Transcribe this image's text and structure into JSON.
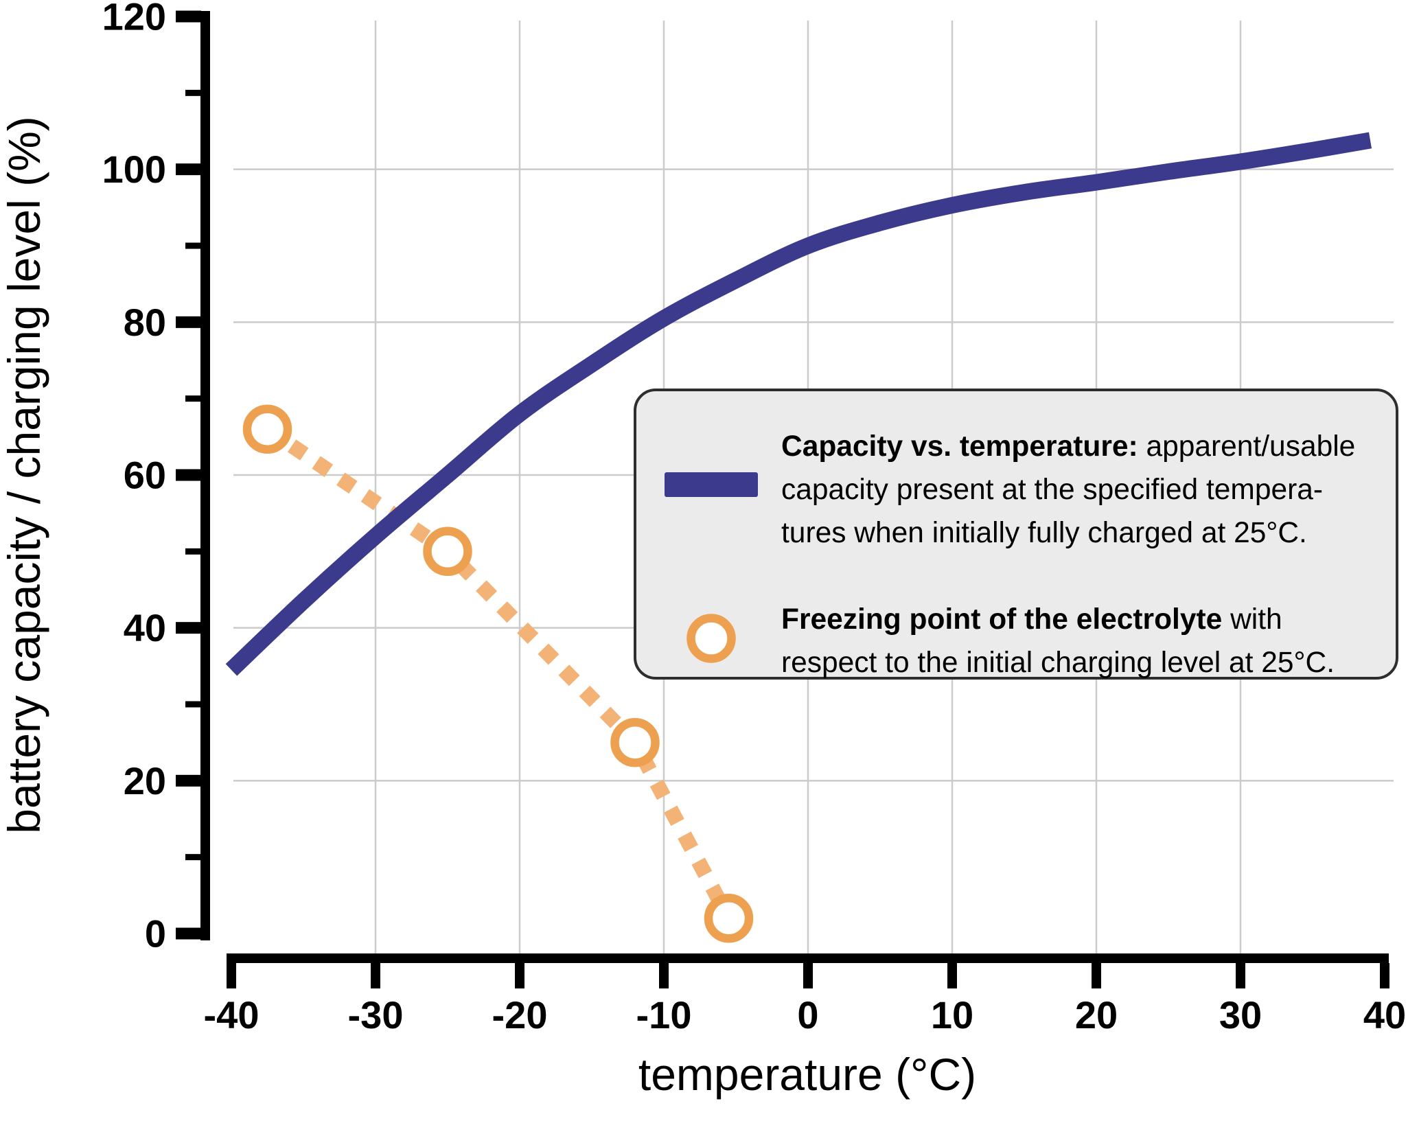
{
  "figure": {
    "y_axis": {
      "title": "battery capacity / charging level (%)",
      "range": [
        0,
        120
      ],
      "major_ticks": [
        {
          "value": 0,
          "label": "0"
        },
        {
          "value": 20,
          "label": "20"
        },
        {
          "value": 40,
          "label": "40"
        },
        {
          "value": 60,
          "label": "60"
        },
        {
          "value": 80,
          "label": "80"
        },
        {
          "value": 100,
          "label": "100"
        },
        {
          "value": 120,
          "label": "120"
        }
      ],
      "minor_ticks": [
        10,
        30,
        50,
        70,
        90,
        110
      ],
      "grid_values": [
        20,
        40,
        60,
        80,
        100
      ]
    },
    "x_axis": {
      "title": "temperature (°C)",
      "range": [
        -40,
        40
      ],
      "major_ticks": [
        {
          "value": -40,
          "label": "-40"
        },
        {
          "value": -30,
          "label": "-30"
        },
        {
          "value": -20,
          "label": "-20"
        },
        {
          "value": -10,
          "label": "-10"
        },
        {
          "value": 0,
          "label": "0"
        },
        {
          "value": 10,
          "label": "10"
        },
        {
          "value": 20,
          "label": "20"
        },
        {
          "value": 30,
          "label": "30"
        },
        {
          "value": 40,
          "label": "40"
        }
      ],
      "grid_values": [
        -30,
        -20,
        -10,
        0,
        10,
        20,
        30
      ]
    },
    "colors": {
      "capacity_line": "#3b3a8c",
      "freezing_marker": "#eda04f",
      "freezing_dash": "#f3b377",
      "grid": "#cbcbcb",
      "axis": "#000000",
      "legend_fill": "#ebebeb",
      "legend_border": "#2e2e2e",
      "text": "#000000",
      "background": "#ffffff"
    },
    "legend": {
      "items": [
        {
          "marker": "line-swatch",
          "lines": [
            [
              {
                "t": "Capacity vs. temperature:",
                "b": true
              },
              {
                "t": " apparent/usable",
                "b": false
              }
            ],
            [
              {
                "t": "capacity present at the specified tempera-",
                "b": false
              }
            ],
            [
              {
                "t": "tures when initially fully charged at 25°C.",
                "b": false
              }
            ]
          ]
        },
        {
          "marker": "ring",
          "lines": [
            [
              {
                "t": "Freezing point of the electrolyte",
                "b": true
              },
              {
                "t": " with",
                "b": false
              }
            ],
            [
              {
                "t": "respect to the initial charging level at 25°C.",
                "b": false
              }
            ]
          ]
        }
      ]
    }
  },
  "chart_data": {
    "type": "line",
    "title": "",
    "xlabel": "temperature (°C)",
    "ylabel": "battery capacity / charging level (%)",
    "xlim": [
      -40,
      40
    ],
    "ylim": [
      0,
      120
    ],
    "grid": true,
    "legend_position": "center-right",
    "series": [
      {
        "name": "Capacity vs. temperature",
        "type": "line",
        "style": "solid-thick",
        "color": "#3b3a8c",
        "x": [
          -40,
          -35,
          -30,
          -25,
          -20,
          -15,
          -10,
          -5,
          0,
          5,
          10,
          15,
          20,
          25,
          30,
          35,
          39
        ],
        "y": [
          34.5,
          43.5,
          52,
          60,
          68,
          74.5,
          80.5,
          85.5,
          90,
          93,
          95.3,
          97,
          98.3,
          99.7,
          101,
          102.5,
          103.8
        ]
      },
      {
        "name": "Freezing point of the electrolyte",
        "type": "line-with-markers",
        "style": "dashed-dotted",
        "color": "#eda04f",
        "dash_color": "#f3b377",
        "marker": "open-circle",
        "x": [
          -37.5,
          -25,
          -12,
          -5.5
        ],
        "y": [
          66,
          50,
          25,
          2
        ]
      }
    ]
  }
}
